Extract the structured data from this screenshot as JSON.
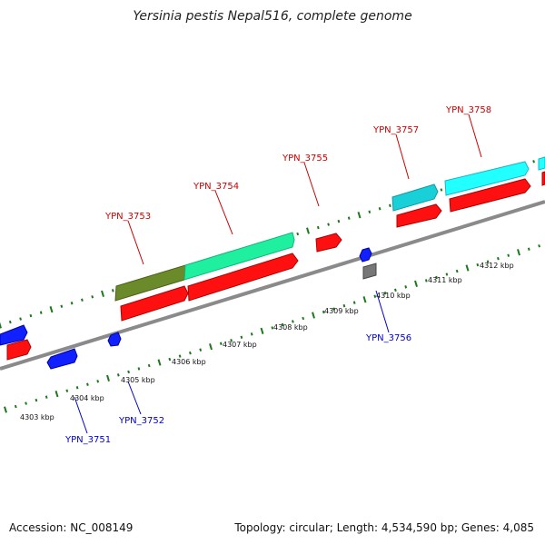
{
  "title": "Yersinia pestis Nepal516, complete genome",
  "footer": {
    "accession": "Accession: NC_008149",
    "stats": "Topology: circular; Length: 4,534,590 bp; Genes: 4,085"
  },
  "map": {
    "kbp_labels": [
      "4303 kbp",
      "4304 kbp",
      "4305 kbp",
      "4306 kbp",
      "4307 kbp",
      "4308 kbp",
      "4309 kbp",
      "4310 kbp",
      "4311 kbp",
      "4312 kbp"
    ],
    "upper_gene_labels": [
      "YPN_3753",
      "YPN_3754",
      "YPN_3755",
      "YPN_3757",
      "YPN_3758"
    ],
    "lower_gene_labels": [
      "YPN_3751",
      "YPN_3752",
      "YPN_3756"
    ],
    "colors": {
      "backbone": "#888888",
      "tick": "#1a7a1a",
      "forward_gene": "#ff1010",
      "reverse_gene": "#1020ff",
      "highlight_green": "#1ef0a0",
      "highlight_olive": "#6b8a2a",
      "highlight_cyan": "#1ad0d8",
      "highlight_cyan_bright": "#22ffff",
      "highlight_gray": "#777777",
      "label_upper": "#cc0000",
      "label_lower": "#0000cc"
    }
  }
}
